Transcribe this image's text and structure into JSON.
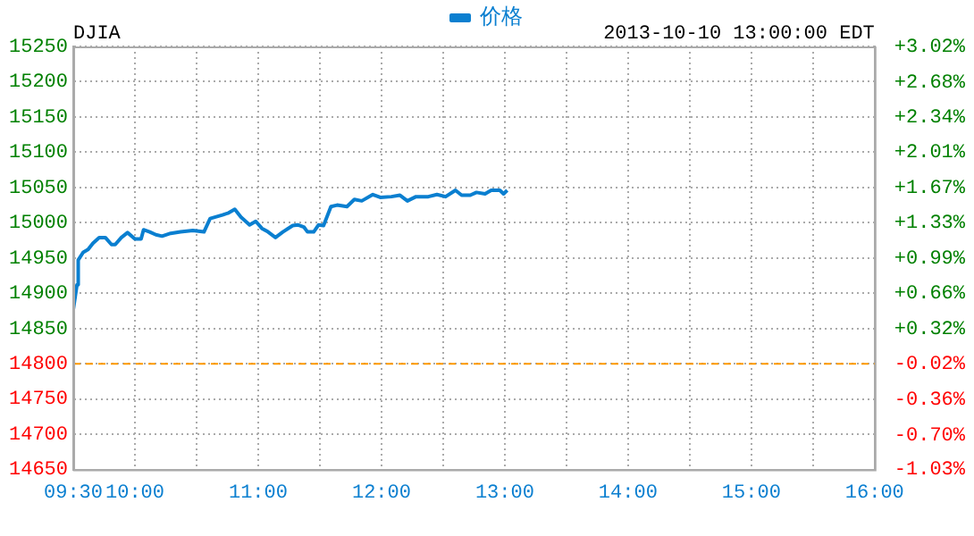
{
  "chart_data": {
    "type": "line",
    "title": "DJIA",
    "subtitle": "2013-10-10 13:00:00 EDT",
    "x": [
      9.5,
      9.53,
      9.54,
      9.58,
      9.62,
      9.66,
      9.71,
      9.76,
      9.81,
      9.84,
      9.89,
      9.94,
      10.0,
      10.05,
      10.07,
      10.12,
      10.17,
      10.22,
      10.29,
      10.37,
      10.47,
      10.56,
      10.61,
      10.71,
      10.76,
      10.81,
      10.86,
      10.93,
      10.98,
      11.03,
      11.08,
      11.14,
      11.2,
      11.28,
      11.32,
      11.37,
      11.4,
      11.45,
      11.49,
      11.53,
      11.59,
      11.64,
      11.72,
      11.78,
      11.84,
      11.93,
      11.99,
      12.08,
      12.15,
      12.21,
      12.28,
      12.38,
      12.45,
      12.52,
      12.6,
      12.65,
      12.72,
      12.77,
      12.84,
      12.89,
      12.96,
      12.99,
      13.02
    ],
    "series": [
      {
        "name": "价格",
        "color": "#0a7fd0",
        "values": [
          14877,
          14912,
          14947,
          14958,
          14962,
          14971,
          14979,
          14979,
          14969,
          14969,
          14979,
          14986,
          14977,
          14977,
          14990,
          14987,
          14983,
          14981,
          14985,
          14987,
          14989,
          14987,
          15006,
          15011,
          15014,
          15019,
          15008,
          14997,
          15002,
          14992,
          14987,
          14979,
          14987,
          14996,
          14997,
          14994,
          14987,
          14987,
          14997,
          14996,
          15023,
          15025,
          15023,
          15033,
          15031,
          15040,
          15036,
          15037,
          15039,
          15031,
          15037,
          15037,
          15040,
          15037,
          15046,
          15039,
          15039,
          15043,
          15041,
          15046,
          15046,
          15041,
          15046
        ]
      }
    ],
    "xlim": [
      9.5,
      16
    ],
    "xticks": [
      {
        "value": 9.5,
        "label": "09:30"
      },
      {
        "value": 10,
        "label": "10:00"
      },
      {
        "value": 10.5,
        "label": null
      },
      {
        "value": 11,
        "label": "11:00"
      },
      {
        "value": 11.5,
        "label": null
      },
      {
        "value": 12,
        "label": "12:00"
      },
      {
        "value": 12.5,
        "label": null
      },
      {
        "value": 13,
        "label": "13:00"
      },
      {
        "value": 13.5,
        "label": null
      },
      {
        "value": 14,
        "label": "14:00"
      },
      {
        "value": 14.5,
        "label": null
      },
      {
        "value": 15,
        "label": "15:00"
      },
      {
        "value": 15.5,
        "label": null
      },
      {
        "value": 16,
        "label": "16:00"
      }
    ],
    "ylim": [
      14650,
      15250
    ],
    "yticks": [
      14650,
      14700,
      14750,
      14800,
      14850,
      14900,
      14950,
      15000,
      15050,
      15100,
      15150,
      15200,
      15250
    ],
    "y2lim": [
      -1.03,
      3.02
    ],
    "y2ticks": [
      {
        "value": -1.03,
        "label": "-1.03%"
      },
      {
        "value": -0.7,
        "label": "-0.70%"
      },
      {
        "value": -0.36,
        "label": "-0.36%"
      },
      {
        "value": -0.02,
        "label": "-0.02%"
      },
      {
        "value": 0.32,
        "label": "+0.32%"
      },
      {
        "value": 0.66,
        "label": "+0.66%"
      },
      {
        "value": 0.99,
        "label": "+0.99%"
      },
      {
        "value": 1.33,
        "label": "+1.33%"
      },
      {
        "value": 1.67,
        "label": "+1.67%"
      },
      {
        "value": 2.01,
        "label": "+2.01%"
      },
      {
        "value": 2.34,
        "label": "+2.34%"
      },
      {
        "value": 2.68,
        "label": "+2.68%"
      },
      {
        "value": 3.02,
        "label": "+3.02%"
      }
    ],
    "ref_lines": [
      {
        "axis": "y",
        "value": 14800,
        "color": "#ff9900",
        "line_style": "dashed"
      }
    ],
    "grid": true,
    "legend": "top",
    "marker": "none",
    "line_style": "solid"
  }
}
